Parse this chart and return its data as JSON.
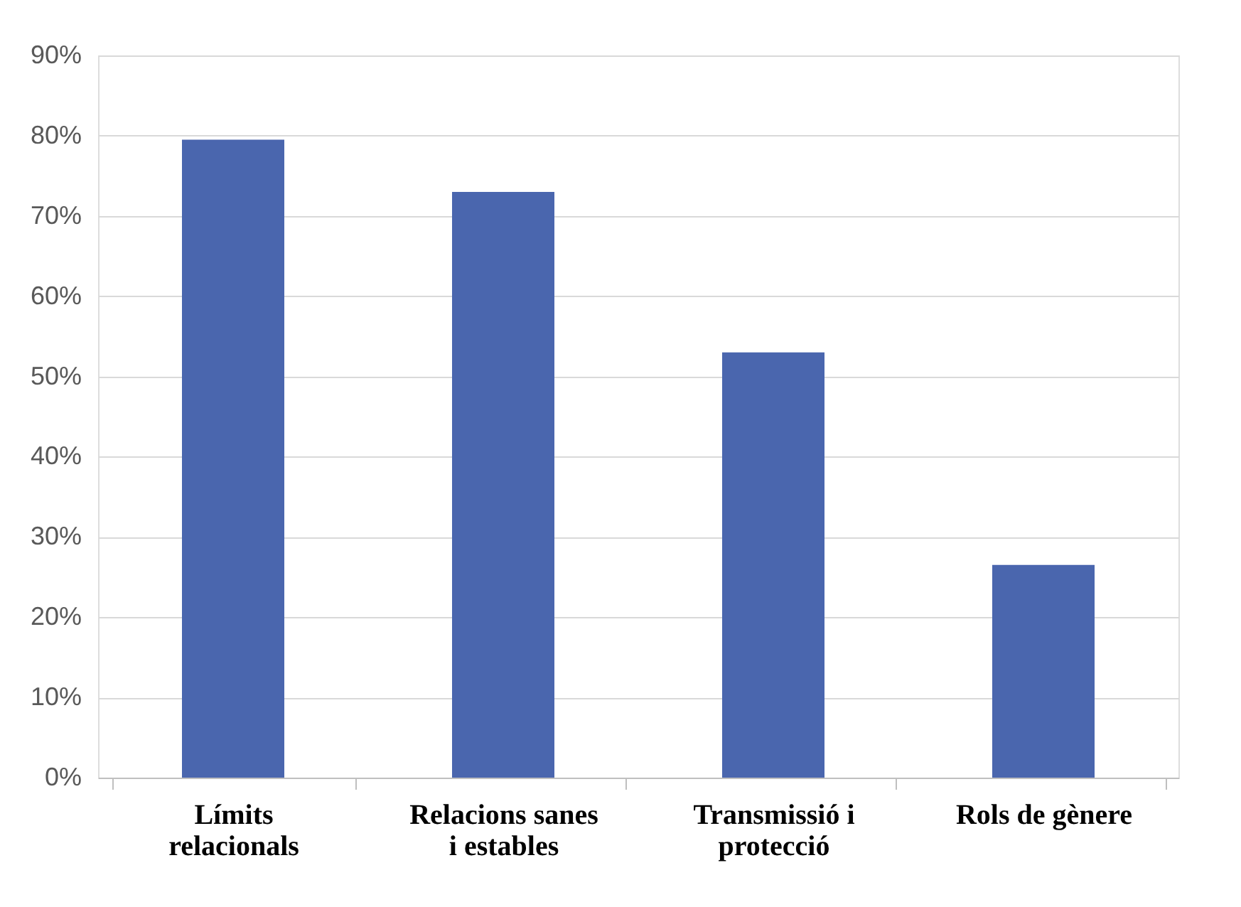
{
  "chart_data": {
    "type": "bar",
    "categories": [
      "Límits relacionals",
      "Relacions sanes i estables",
      "Transmissió i protecció",
      "Rols de gènere"
    ],
    "values": [
      79.5,
      73,
      53,
      26.5
    ],
    "color": "#4a66ae",
    "ylim": [
      0,
      90
    ],
    "yticks": [
      {
        "value": 0,
        "label": "0%"
      },
      {
        "value": 10,
        "label": "10%"
      },
      {
        "value": 20,
        "label": "20%"
      },
      {
        "value": 30,
        "label": "30%"
      },
      {
        "value": 40,
        "label": "40%"
      },
      {
        "value": 50,
        "label": "50%"
      },
      {
        "value": 60,
        "label": "60%"
      },
      {
        "value": 70,
        "label": "70%"
      },
      {
        "value": 80,
        "label": "80%"
      },
      {
        "value": 90,
        "label": "90%"
      }
    ],
    "grid": "y"
  }
}
